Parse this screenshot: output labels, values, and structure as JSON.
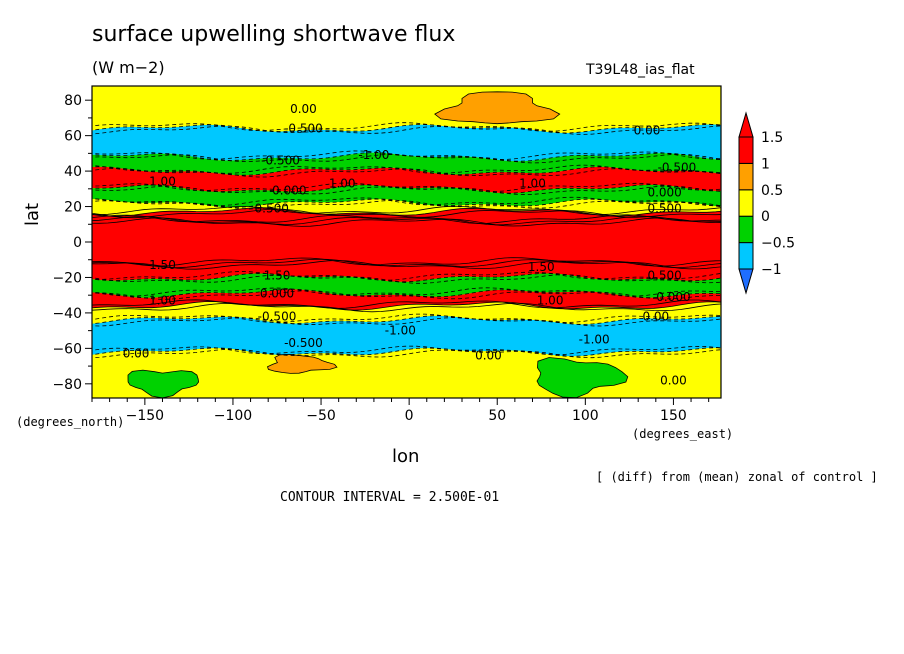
{
  "header": {
    "title": "surface upwelling shortwave flux",
    "units": "(W m−2)",
    "run": "T39L48_ias_flat"
  },
  "footer": {
    "contour_interval": "CONTOUR INTERVAL = 2.500E-01",
    "note": "[ (diff) from (mean) zonal of control ]"
  },
  "chart_data": {
    "type": "heatmap",
    "title": "surface upwelling shortwave flux",
    "subtitle": "(W m−2)",
    "xlabel": "lon",
    "ylabel": "lat",
    "x_units": "(degrees_east)",
    "y_units": "(degrees_north)",
    "xlim": [
      -180,
      177
    ],
    "ylim": [
      -88,
      88
    ],
    "x_ticks": [
      -150,
      -100,
      -50,
      0,
      50,
      100,
      150
    ],
    "x_tick_labels": [
      "−150",
      "−100",
      "−50",
      "0",
      "50",
      "100",
      "150"
    ],
    "y_ticks": [
      -80,
      -60,
      -40,
      -20,
      0,
      20,
      40,
      60,
      80
    ],
    "y_tick_labels": [
      "−80",
      "−60",
      "−40",
      "−20",
      "0",
      "20",
      "40",
      "60",
      "80"
    ],
    "colorbar": {
      "levels": [
        -1,
        -0.5,
        0,
        0.5,
        1,
        1.5
      ],
      "labels": [
        "−1",
        "−0.5",
        "0",
        "0.5",
        "1",
        "1.5"
      ],
      "colors": [
        "#1e6eff",
        "#00c8ff",
        "#00d200",
        "#ffff00",
        "#ffa000",
        "#ff0000"
      ],
      "under_color": "#1e6eff",
      "over_color": "#ff0000"
    },
    "bands": [
      {
        "lat_range": [
          -88,
          -62
        ],
        "value": 0.0
      },
      {
        "lat_range": [
          -62,
          -44
        ],
        "value": -0.75
      },
      {
        "lat_range": [
          -44,
          -36
        ],
        "value": 0.25
      },
      {
        "lat_range": [
          -36,
          -29
        ],
        "value": 1.25
      },
      {
        "lat_range": [
          -29,
          -20
        ],
        "value": -0.5
      },
      {
        "lat_range": [
          -20,
          -12
        ],
        "value": 1.25
      },
      {
        "lat_range": [
          -12,
          12
        ],
        "value": 2.0
      },
      {
        "lat_range": [
          12,
          17
        ],
        "value": 1.25
      },
      {
        "lat_range": [
          17,
          22
        ],
        "value": 0.25
      },
      {
        "lat_range": [
          22,
          30
        ],
        "value": -0.5
      },
      {
        "lat_range": [
          30,
          40
        ],
        "value": 1.25
      },
      {
        "lat_range": [
          40,
          48
        ],
        "value": -0.5
      },
      {
        "lat_range": [
          48,
          64
        ],
        "value": -1.0
      },
      {
        "lat_range": [
          64,
          88
        ],
        "value": 0.0
      }
    ],
    "patches": [
      {
        "lon_range": [
          20,
          80
        ],
        "lat_range": [
          66,
          84
        ],
        "value": 0.75
      },
      {
        "lon_range": [
          -80,
          -45
        ],
        "lat_range": [
          -74,
          -64
        ],
        "value": 0.75
      },
      {
        "lon_range": [
          70,
          120
        ],
        "lat_range": [
          -86,
          -66
        ],
        "value": -0.5
      },
      {
        "lon_range": [
          -160,
          -120
        ],
        "lat_range": [
          -86,
          -72
        ],
        "value": -0.5
      }
    ],
    "contour_labels": [
      {
        "lon": -60,
        "lat": 75,
        "text": "0.00"
      },
      {
        "lon": -60,
        "lat": 64,
        "text": "-0.500"
      },
      {
        "lon": 135,
        "lat": 63,
        "text": "0.00"
      },
      {
        "lon": -20,
        "lat": 49,
        "text": "-1.00"
      },
      {
        "lon": -73,
        "lat": 46,
        "text": "-0.500"
      },
      {
        "lon": 152,
        "lat": 42,
        "text": "-0.500"
      },
      {
        "lon": -140,
        "lat": 34,
        "text": "1.00"
      },
      {
        "lon": -38,
        "lat": 33,
        "text": "1.00"
      },
      {
        "lon": 70,
        "lat": 33,
        "text": "1.00"
      },
      {
        "lon": -68,
        "lat": 29,
        "text": "0.000"
      },
      {
        "lon": 145,
        "lat": 28,
        "text": "0.000"
      },
      {
        "lon": -78,
        "lat": 19,
        "text": "0.500"
      },
      {
        "lon": 145,
        "lat": 19,
        "text": "0.500"
      },
      {
        "lon": -140,
        "lat": -13,
        "text": "1.50"
      },
      {
        "lon": 75,
        "lat": -14,
        "text": "1.50"
      },
      {
        "lon": 145,
        "lat": -19,
        "text": "0.500"
      },
      {
        "lon": -75,
        "lat": -19,
        "text": "1.50"
      },
      {
        "lon": -75,
        "lat": -29,
        "text": "0.000"
      },
      {
        "lon": 150,
        "lat": -31,
        "text": "0.000"
      },
      {
        "lon": -140,
        "lat": -33,
        "text": "1.00"
      },
      {
        "lon": 80,
        "lat": -33,
        "text": "1.00"
      },
      {
        "lon": -75,
        "lat": -42,
        "text": "-0.500"
      },
      {
        "lon": 140,
        "lat": -42,
        "text": "0.00"
      },
      {
        "lon": -5,
        "lat": -50,
        "text": "-1.00"
      },
      {
        "lon": 105,
        "lat": -55,
        "text": "-1.00"
      },
      {
        "lon": -60,
        "lat": -57,
        "text": "-0.500"
      },
      {
        "lon": -155,
        "lat": -63,
        "text": "0.00"
      },
      {
        "lon": 45,
        "lat": -64,
        "text": "0.00"
      },
      {
        "lon": 150,
        "lat": -78,
        "text": "0.00"
      }
    ]
  }
}
